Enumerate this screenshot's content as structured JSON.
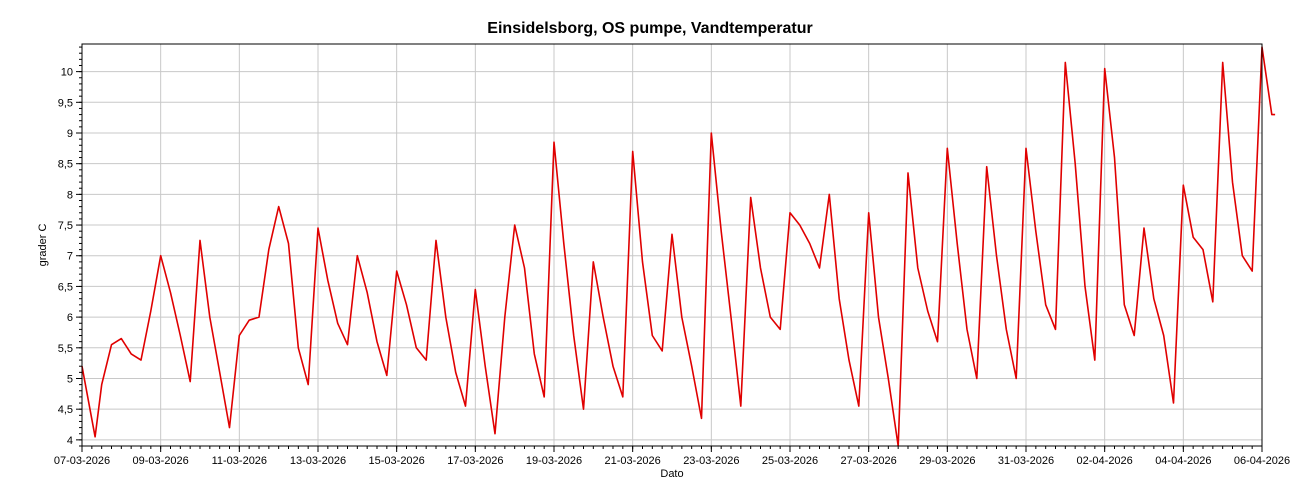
{
  "chart_data": {
    "type": "line",
    "title": "Einsidelsborg, OS pumpe, Vandtemperatur",
    "xlabel": "Dato",
    "ylabel": "grader C",
    "xlim": [
      "07-03-2026",
      "06-04-2026"
    ],
    "ylim": [
      3.9,
      10.45
    ],
    "x_tick_labels": [
      "07-03-2026",
      "09-03-2026",
      "11-03-2026",
      "13-03-2026",
      "15-03-2026",
      "17-03-2026",
      "19-03-2026",
      "21-03-2026",
      "23-03-2026",
      "25-03-2026",
      "27-03-2026",
      "29-03-2026",
      "31-03-2026",
      "02-04-2026",
      "04-04-2026",
      "06-04-2026"
    ],
    "y_tick_labels": [
      "4",
      "4,5",
      "5",
      "5,5",
      "6",
      "6,5",
      "7",
      "7,5",
      "8",
      "8,5",
      "9",
      "9,5",
      "10"
    ],
    "y_ticks": [
      4,
      4.5,
      5,
      5.5,
      6,
      6.5,
      7,
      7.5,
      8,
      8.5,
      9,
      9.5,
      10
    ],
    "grid": true,
    "line_color": "#e00000",
    "series": [
      {
        "x": [
          "07-03-2026 00:00",
          "07-03-2026 08:00",
          "07-03-2026 12:00",
          "07-03-2026 18:00",
          "08-03-2026 00:00",
          "08-03-2026 06:00",
          "08-03-2026 12:00",
          "08-03-2026 18:00",
          "09-03-2026 00:00",
          "09-03-2026 06:00",
          "09-03-2026 12:00",
          "09-03-2026 18:00",
          "10-03-2026 00:00",
          "10-03-2026 06:00",
          "10-03-2026 12:00",
          "10-03-2026 18:00",
          "11-03-2026 00:00",
          "11-03-2026 06:00",
          "11-03-2026 12:00",
          "11-03-2026 18:00",
          "12-03-2026 00:00",
          "12-03-2026 06:00",
          "12-03-2026 12:00",
          "12-03-2026 18:00",
          "13-03-2026 00:00",
          "13-03-2026 06:00",
          "13-03-2026 12:00",
          "13-03-2026 18:00",
          "14-03-2026 00:00",
          "14-03-2026 06:00",
          "14-03-2026 12:00",
          "14-03-2026 18:00",
          "15-03-2026 00:00",
          "15-03-2026 06:00",
          "15-03-2026 12:00",
          "15-03-2026 18:00",
          "16-03-2026 00:00",
          "16-03-2026 06:00",
          "16-03-2026 12:00",
          "16-03-2026 18:00",
          "17-03-2026 00:00",
          "17-03-2026 06:00",
          "17-03-2026 12:00",
          "17-03-2026 18:00",
          "18-03-2026 00:00",
          "18-03-2026 06:00",
          "18-03-2026 12:00",
          "18-03-2026 18:00",
          "19-03-2026 00:00",
          "19-03-2026 06:00",
          "19-03-2026 12:00",
          "19-03-2026 18:00",
          "20-03-2026 00:00",
          "20-03-2026 06:00",
          "20-03-2026 12:00",
          "20-03-2026 18:00",
          "21-03-2026 00:00",
          "21-03-2026 06:00",
          "21-03-2026 12:00",
          "21-03-2026 18:00",
          "22-03-2026 00:00",
          "22-03-2026 06:00",
          "22-03-2026 12:00",
          "22-03-2026 18:00",
          "23-03-2026 00:00",
          "23-03-2026 06:00",
          "23-03-2026 12:00",
          "23-03-2026 18:00",
          "24-03-2026 00:00",
          "24-03-2026 06:00",
          "24-03-2026 12:00",
          "24-03-2026 18:00",
          "25-03-2026 00:00",
          "25-03-2026 06:00",
          "25-03-2026 12:00",
          "25-03-2026 18:00",
          "26-03-2026 00:00",
          "26-03-2026 06:00",
          "26-03-2026 12:00",
          "26-03-2026 18:00",
          "27-03-2026 00:00",
          "27-03-2026 06:00",
          "27-03-2026 12:00",
          "27-03-2026 18:00",
          "28-03-2026 00:00",
          "28-03-2026 06:00",
          "28-03-2026 12:00",
          "28-03-2026 18:00",
          "29-03-2026 00:00",
          "29-03-2026 06:00",
          "29-03-2026 12:00",
          "29-03-2026 18:00",
          "30-03-2026 00:00",
          "30-03-2026 06:00",
          "30-03-2026 12:00",
          "30-03-2026 18:00",
          "31-03-2026 00:00",
          "31-03-2026 06:00",
          "31-03-2026 12:00",
          "31-03-2026 18:00",
          "01-04-2026 00:00",
          "01-04-2026 06:00",
          "01-04-2026 12:00",
          "01-04-2026 18:00",
          "02-04-2026 00:00",
          "02-04-2026 06:00",
          "02-04-2026 12:00",
          "02-04-2026 18:00",
          "03-04-2026 00:00",
          "03-04-2026 06:00",
          "03-04-2026 12:00",
          "03-04-2026 18:00",
          "04-04-2026 00:00",
          "04-04-2026 06:00",
          "04-04-2026 12:00",
          "04-04-2026 18:00",
          "05-04-2026 00:00",
          "05-04-2026 06:00",
          "05-04-2026 12:00",
          "05-04-2026 18:00",
          "06-04-2026 00:00",
          "06-04-2026 06:00",
          "06-04-2026 08:00"
        ],
        "y": [
          5.2,
          4.05,
          4.9,
          5.55,
          5.65,
          5.4,
          5.3,
          6.1,
          7.0,
          6.4,
          5.7,
          4.95,
          7.25,
          6.0,
          5.1,
          4.2,
          5.7,
          5.95,
          6.0,
          7.1,
          7.8,
          7.2,
          5.5,
          4.9,
          7.45,
          6.6,
          5.9,
          5.55,
          7.0,
          6.4,
          5.6,
          5.05,
          6.75,
          6.2,
          5.5,
          5.3,
          7.25,
          6.0,
          5.1,
          4.55,
          6.45,
          5.2,
          4.1,
          6.0,
          7.5,
          6.8,
          5.4,
          4.7,
          8.85,
          7.2,
          5.7,
          4.5,
          6.9,
          6.0,
          5.2,
          4.7,
          8.7,
          6.9,
          5.7,
          5.45,
          7.35,
          6.0,
          5.2,
          4.35,
          9.0,
          7.4,
          6.0,
          4.55,
          7.95,
          6.8,
          6.0,
          5.8,
          7.7,
          7.5,
          7.2,
          6.8,
          8.0,
          6.3,
          5.3,
          4.55,
          7.7,
          6.0,
          5.0,
          3.9,
          8.35,
          6.8,
          6.1,
          5.6,
          8.75,
          7.2,
          5.8,
          5.0,
          8.45,
          7.0,
          5.8,
          5.0,
          8.75,
          7.4,
          6.2,
          5.8,
          10.15,
          8.5,
          6.5,
          5.3,
          10.05,
          8.6,
          6.2,
          5.7,
          7.45,
          6.3,
          5.7,
          4.6,
          8.15,
          7.3,
          7.1,
          6.25,
          10.15,
          8.2,
          7.0,
          6.75,
          10.4,
          9.3,
          9.3
        ]
      }
    ]
  }
}
